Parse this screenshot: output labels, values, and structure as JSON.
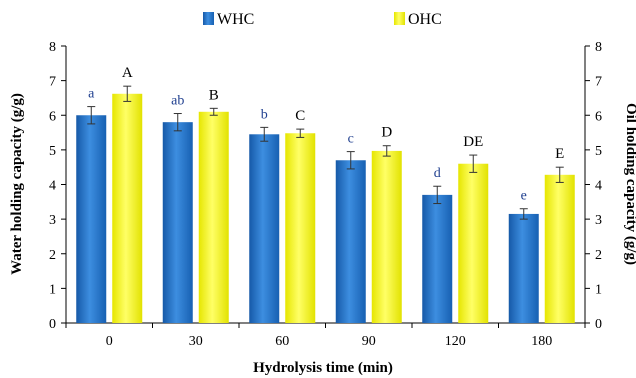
{
  "chart_data": {
    "type": "bar",
    "categories": [
      "0",
      "30",
      "60",
      "90",
      "120",
      "180"
    ],
    "xlabel": "Hydrolysis time (min)",
    "ylabel_left": "Water holding capacity (g/g)",
    "ylabel_right": "Oil holding capacity (g/g)",
    "ylim": [
      0,
      8
    ],
    "yticks": [
      0,
      1,
      2,
      3,
      4,
      5,
      6,
      7,
      8
    ],
    "grid": false,
    "legend_position": "top-center",
    "series": [
      {
        "name": "WHC",
        "color": "#1e6fc4",
        "values": [
          6.0,
          5.8,
          5.45,
          4.7,
          3.7,
          3.15
        ],
        "errors": [
          0.25,
          0.25,
          0.2,
          0.25,
          0.25,
          0.15
        ],
        "significance": [
          "a",
          "ab",
          "b",
          "c",
          "d",
          "e"
        ]
      },
      {
        "name": "OHC",
        "color": "#f2f21a",
        "values": [
          6.62,
          6.1,
          5.48,
          4.97,
          4.6,
          4.28
        ],
        "errors": [
          0.22,
          0.1,
          0.12,
          0.15,
          0.25,
          0.22
        ],
        "significance": [
          "A",
          "B",
          "C",
          "D",
          "DE",
          "E"
        ]
      }
    ]
  }
}
